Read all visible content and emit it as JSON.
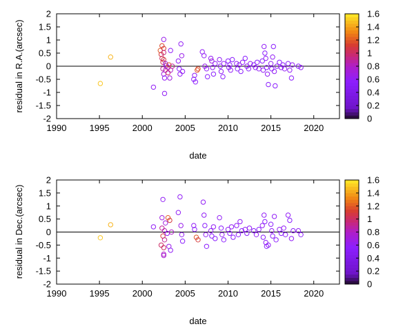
{
  "chart_data": [
    {
      "type": "scatter",
      "xlabel": "date",
      "ylabel": "residual in R.A.(arcsec)",
      "xlim": [
        1990,
        2023
      ],
      "ylim": [
        -2,
        2
      ],
      "xticks": [
        1990,
        1995,
        2000,
        2005,
        2010,
        2015,
        2020
      ],
      "yticks": [
        -2,
        -1.5,
        -1,
        -0.5,
        0,
        0.5,
        1,
        1.5,
        2
      ],
      "grid": false,
      "zero_line": true,
      "marker": "open-circle",
      "colorbar": {
        "range": [
          0,
          1.6
        ],
        "ticks": [
          0,
          0.2,
          0.4,
          0.6,
          0.8,
          1,
          1.2,
          1.4,
          1.6
        ],
        "placement": "right"
      },
      "points": [
        {
          "x": 1995.1,
          "y": -0.66,
          "c": 1.5
        },
        {
          "x": 1996.3,
          "y": 0.35,
          "c": 1.45
        },
        {
          "x": 2001.3,
          "y": -0.8,
          "c": 0.6
        },
        {
          "x": 2002.1,
          "y": 0.6,
          "c": 1.2
        },
        {
          "x": 2002.2,
          "y": 0.45,
          "c": 1.1
        },
        {
          "x": 2002.3,
          "y": 0.78,
          "c": 1.15
        },
        {
          "x": 2002.3,
          "y": 0.3,
          "c": 1.0
        },
        {
          "x": 2002.4,
          "y": 0.15,
          "c": 1.05
        },
        {
          "x": 2002.4,
          "y": -0.1,
          "c": 0.9
        },
        {
          "x": 2002.5,
          "y": 1.02,
          "c": 0.65
        },
        {
          "x": 2002.5,
          "y": 0.68,
          "c": 1.1
        },
        {
          "x": 2002.5,
          "y": 0.52,
          "c": 0.95
        },
        {
          "x": 2002.5,
          "y": 0.25,
          "c": 1.1
        },
        {
          "x": 2002.5,
          "y": -0.3,
          "c": 0.7
        },
        {
          "x": 2002.6,
          "y": -0.45,
          "c": 0.6
        },
        {
          "x": 2002.6,
          "y": -1.04,
          "c": 0.6
        },
        {
          "x": 2002.7,
          "y": 0.1,
          "c": 0.7
        },
        {
          "x": 2002.7,
          "y": -0.15,
          "c": 0.8
        },
        {
          "x": 2002.8,
          "y": 0.02,
          "c": 0.65
        },
        {
          "x": 2003.0,
          "y": -0.05,
          "c": 0.9
        },
        {
          "x": 2003.0,
          "y": -0.25,
          "c": 1.0
        },
        {
          "x": 2003.1,
          "y": 0.05,
          "c": 1.2
        },
        {
          "x": 2003.2,
          "y": -0.45,
          "c": 0.7
        },
        {
          "x": 2003.3,
          "y": 0.6,
          "c": 0.6
        },
        {
          "x": 2003.3,
          "y": -0.15,
          "c": 0.8
        },
        {
          "x": 2003.5,
          "y": 0.0,
          "c": 0.9
        },
        {
          "x": 2004.2,
          "y": 0.2,
          "c": 0.6
        },
        {
          "x": 2004.3,
          "y": -0.1,
          "c": 0.55
        },
        {
          "x": 2004.4,
          "y": -0.3,
          "c": 0.6
        },
        {
          "x": 2004.5,
          "y": 0.85,
          "c": 0.6
        },
        {
          "x": 2004.6,
          "y": 0.4,
          "c": 0.65
        },
        {
          "x": 2004.7,
          "y": -0.2,
          "c": 0.6
        },
        {
          "x": 2006.0,
          "y": -0.5,
          "c": 0.55
        },
        {
          "x": 2006.1,
          "y": -0.35,
          "c": 0.6
        },
        {
          "x": 2006.2,
          "y": -0.6,
          "c": 0.55
        },
        {
          "x": 2006.4,
          "y": -0.15,
          "c": 1.2
        },
        {
          "x": 2006.5,
          "y": -0.1,
          "c": 1.15
        },
        {
          "x": 2007.0,
          "y": 0.55,
          "c": 0.6
        },
        {
          "x": 2007.2,
          "y": 0.4,
          "c": 0.6
        },
        {
          "x": 2007.3,
          "y": 0.0,
          "c": 0.65
        },
        {
          "x": 2007.5,
          "y": -0.1,
          "c": 0.6
        },
        {
          "x": 2007.6,
          "y": -0.4,
          "c": 0.55
        },
        {
          "x": 2008.0,
          "y": 0.3,
          "c": 0.6
        },
        {
          "x": 2008.1,
          "y": 0.2,
          "c": 0.7
        },
        {
          "x": 2008.2,
          "y": -0.05,
          "c": 0.6
        },
        {
          "x": 2008.3,
          "y": -0.3,
          "c": 0.55
        },
        {
          "x": 2008.5,
          "y": 0.1,
          "c": 0.6
        },
        {
          "x": 2009.0,
          "y": 0.25,
          "c": 0.6
        },
        {
          "x": 2009.1,
          "y": 0.0,
          "c": 0.55
        },
        {
          "x": 2009.2,
          "y": -0.2,
          "c": 0.6
        },
        {
          "x": 2009.4,
          "y": -0.4,
          "c": 0.55
        },
        {
          "x": 2009.5,
          "y": 0.1,
          "c": 0.6
        },
        {
          "x": 2010.0,
          "y": 0.2,
          "c": 0.55
        },
        {
          "x": 2010.1,
          "y": -0.05,
          "c": 0.6
        },
        {
          "x": 2010.2,
          "y": 0.05,
          "c": 0.55
        },
        {
          "x": 2010.3,
          "y": -0.15,
          "c": 0.6
        },
        {
          "x": 2010.5,
          "y": 0.25,
          "c": 0.55
        },
        {
          "x": 2011.0,
          "y": 0.1,
          "c": 0.6
        },
        {
          "x": 2011.1,
          "y": -0.1,
          "c": 0.55
        },
        {
          "x": 2011.3,
          "y": 0.05,
          "c": 0.6
        },
        {
          "x": 2011.5,
          "y": -0.2,
          "c": 0.55
        },
        {
          "x": 2011.7,
          "y": 0.15,
          "c": 0.6
        },
        {
          "x": 2012.0,
          "y": 0.3,
          "c": 0.55
        },
        {
          "x": 2012.2,
          "y": 0.0,
          "c": 0.6
        },
        {
          "x": 2012.4,
          "y": -0.1,
          "c": 0.55
        },
        {
          "x": 2012.6,
          "y": 0.1,
          "c": 0.6
        },
        {
          "x": 2013.0,
          "y": 0.05,
          "c": 0.55
        },
        {
          "x": 2013.2,
          "y": -0.05,
          "c": 0.6
        },
        {
          "x": 2013.4,
          "y": 0.15,
          "c": 0.55
        },
        {
          "x": 2013.6,
          "y": -0.1,
          "c": 0.6
        },
        {
          "x": 2014.0,
          "y": 0.2,
          "c": 0.55
        },
        {
          "x": 2014.1,
          "y": -0.15,
          "c": 0.6
        },
        {
          "x": 2014.2,
          "y": 0.75,
          "c": 0.6
        },
        {
          "x": 2014.3,
          "y": 0.5,
          "c": 0.55
        },
        {
          "x": 2014.4,
          "y": 0.3,
          "c": 0.6
        },
        {
          "x": 2014.5,
          "y": -0.05,
          "c": 0.55
        },
        {
          "x": 2014.6,
          "y": -0.3,
          "c": 0.6
        },
        {
          "x": 2014.7,
          "y": -0.7,
          "c": 0.55
        },
        {
          "x": 2015.0,
          "y": 0.1,
          "c": 0.6
        },
        {
          "x": 2015.1,
          "y": -0.1,
          "c": 0.55
        },
        {
          "x": 2015.2,
          "y": 0.35,
          "c": 0.6
        },
        {
          "x": 2015.3,
          "y": 0.75,
          "c": 0.55
        },
        {
          "x": 2015.4,
          "y": -0.2,
          "c": 0.6
        },
        {
          "x": 2015.5,
          "y": -0.75,
          "c": 0.55
        },
        {
          "x": 2015.7,
          "y": 0.0,
          "c": 0.6
        },
        {
          "x": 2016.0,
          "y": 0.15,
          "c": 0.55
        },
        {
          "x": 2016.2,
          "y": -0.05,
          "c": 0.6
        },
        {
          "x": 2016.4,
          "y": 0.05,
          "c": 0.55
        },
        {
          "x": 2016.6,
          "y": -0.1,
          "c": 0.6
        },
        {
          "x": 2017.0,
          "y": 0.1,
          "c": 0.55
        },
        {
          "x": 2017.2,
          "y": -0.15,
          "c": 0.6
        },
        {
          "x": 2017.4,
          "y": -0.45,
          "c": 0.55
        },
        {
          "x": 2017.5,
          "y": 0.05,
          "c": 0.6
        },
        {
          "x": 2018.2,
          "y": 0.0,
          "c": 0.55
        },
        {
          "x": 2018.5,
          "y": -0.05,
          "c": 0.6
        }
      ]
    },
    {
      "type": "scatter",
      "xlabel": "date",
      "ylabel": "residual in Dec.(arcsec)",
      "xlim": [
        1990,
        2023
      ],
      "ylim": [
        -2,
        2
      ],
      "xticks": [
        1990,
        1995,
        2000,
        2005,
        2010,
        2015,
        2020
      ],
      "yticks": [
        -2,
        -1.5,
        -1,
        -0.5,
        0,
        0.5,
        1,
        1.5,
        2
      ],
      "grid": false,
      "zero_line": true,
      "marker": "open-circle",
      "colorbar": {
        "range": [
          0,
          1.6
        ],
        "ticks": [
          0,
          0.2,
          0.4,
          0.6,
          0.8,
          1,
          1.2,
          1.4,
          1.6
        ],
        "placement": "right"
      },
      "points": [
        {
          "x": 1995.1,
          "y": -0.22,
          "c": 1.5
        },
        {
          "x": 1996.3,
          "y": 0.28,
          "c": 1.45
        },
        {
          "x": 2001.3,
          "y": 0.2,
          "c": 0.6
        },
        {
          "x": 2002.2,
          "y": -0.5,
          "c": 1.0
        },
        {
          "x": 2002.3,
          "y": 0.55,
          "c": 0.7
        },
        {
          "x": 2002.3,
          "y": 0.15,
          "c": 0.9
        },
        {
          "x": 2002.4,
          "y": 1.25,
          "c": 0.6
        },
        {
          "x": 2002.4,
          "y": -0.15,
          "c": 1.1
        },
        {
          "x": 2002.5,
          "y": -0.85,
          "c": 0.8
        },
        {
          "x": 2002.5,
          "y": -0.9,
          "c": 0.75
        },
        {
          "x": 2002.5,
          "y": -0.6,
          "c": 1.0
        },
        {
          "x": 2002.6,
          "y": 0.05,
          "c": 0.85
        },
        {
          "x": 2002.6,
          "y": -0.3,
          "c": 0.9
        },
        {
          "x": 2002.7,
          "y": 0.35,
          "c": 0.7
        },
        {
          "x": 2002.9,
          "y": -0.05,
          "c": 0.6
        },
        {
          "x": 2003.0,
          "y": 0.55,
          "c": 1.2
        },
        {
          "x": 2003.1,
          "y": -0.55,
          "c": 0.65
        },
        {
          "x": 2003.2,
          "y": 0.45,
          "c": 1.1
        },
        {
          "x": 2003.3,
          "y": -0.7,
          "c": 0.6
        },
        {
          "x": 2003.4,
          "y": 0.0,
          "c": 0.8
        },
        {
          "x": 2004.2,
          "y": 0.75,
          "c": 0.6
        },
        {
          "x": 2004.4,
          "y": 1.35,
          "c": 0.6
        },
        {
          "x": 2004.5,
          "y": 0.25,
          "c": 0.65
        },
        {
          "x": 2004.6,
          "y": -0.1,
          "c": 0.6
        },
        {
          "x": 2004.7,
          "y": -0.35,
          "c": 0.55
        },
        {
          "x": 2006.0,
          "y": 0.25,
          "c": 0.6
        },
        {
          "x": 2006.1,
          "y": 0.1,
          "c": 0.55
        },
        {
          "x": 2006.3,
          "y": -0.2,
          "c": 1.2
        },
        {
          "x": 2006.5,
          "y": -0.3,
          "c": 1.1
        },
        {
          "x": 2007.1,
          "y": 1.15,
          "c": 0.6
        },
        {
          "x": 2007.2,
          "y": 0.65,
          "c": 0.6
        },
        {
          "x": 2007.3,
          "y": 0.25,
          "c": 0.55
        },
        {
          "x": 2007.4,
          "y": -0.1,
          "c": 0.6
        },
        {
          "x": 2007.5,
          "y": -0.55,
          "c": 0.55
        },
        {
          "x": 2008.0,
          "y": 0.05,
          "c": 0.6
        },
        {
          "x": 2008.1,
          "y": -0.15,
          "c": 0.55
        },
        {
          "x": 2008.3,
          "y": 0.2,
          "c": 0.6
        },
        {
          "x": 2008.5,
          "y": -0.25,
          "c": 0.55
        },
        {
          "x": 2009.0,
          "y": 0.55,
          "c": 0.6
        },
        {
          "x": 2009.2,
          "y": 0.15,
          "c": 0.55
        },
        {
          "x": 2009.3,
          "y": -0.1,
          "c": 0.6
        },
        {
          "x": 2009.5,
          "y": -0.3,
          "c": 0.55
        },
        {
          "x": 2010.0,
          "y": 0.1,
          "c": 0.6
        },
        {
          "x": 2010.2,
          "y": -0.05,
          "c": 0.55
        },
        {
          "x": 2010.4,
          "y": 0.2,
          "c": 0.6
        },
        {
          "x": 2010.6,
          "y": -0.2,
          "c": 0.55
        },
        {
          "x": 2011.0,
          "y": 0.25,
          "c": 0.6
        },
        {
          "x": 2011.2,
          "y": -0.1,
          "c": 0.55
        },
        {
          "x": 2011.4,
          "y": 0.4,
          "c": 0.6
        },
        {
          "x": 2011.6,
          "y": 0.05,
          "c": 0.55
        },
        {
          "x": 2012.0,
          "y": 0.1,
          "c": 0.6
        },
        {
          "x": 2012.2,
          "y": -0.05,
          "c": 0.55
        },
        {
          "x": 2012.5,
          "y": 0.15,
          "c": 0.6
        },
        {
          "x": 2013.0,
          "y": 0.05,
          "c": 0.55
        },
        {
          "x": 2013.3,
          "y": -0.1,
          "c": 0.6
        },
        {
          "x": 2013.6,
          "y": 0.1,
          "c": 0.55
        },
        {
          "x": 2014.0,
          "y": 0.25,
          "c": 0.6
        },
        {
          "x": 2014.1,
          "y": -0.2,
          "c": 0.55
        },
        {
          "x": 2014.2,
          "y": 0.65,
          "c": 0.6
        },
        {
          "x": 2014.3,
          "y": 0.4,
          "c": 0.55
        },
        {
          "x": 2014.4,
          "y": -0.4,
          "c": 0.6
        },
        {
          "x": 2014.5,
          "y": -0.55,
          "c": 0.55
        },
        {
          "x": 2014.7,
          "y": -0.5,
          "c": 0.6
        },
        {
          "x": 2015.0,
          "y": 0.3,
          "c": 0.55
        },
        {
          "x": 2015.1,
          "y": 0.05,
          "c": 0.6
        },
        {
          "x": 2015.2,
          "y": -0.15,
          "c": 0.55
        },
        {
          "x": 2015.4,
          "y": 0.6,
          "c": 0.6
        },
        {
          "x": 2015.6,
          "y": -0.3,
          "c": 0.55
        },
        {
          "x": 2016.0,
          "y": 0.1,
          "c": 0.6
        },
        {
          "x": 2016.2,
          "y": -0.05,
          "c": 0.55
        },
        {
          "x": 2016.5,
          "y": 0.15,
          "c": 0.6
        },
        {
          "x": 2016.7,
          "y": -0.1,
          "c": 0.55
        },
        {
          "x": 2017.0,
          "y": 0.65,
          "c": 0.6
        },
        {
          "x": 2017.2,
          "y": 0.45,
          "c": 0.55
        },
        {
          "x": 2017.4,
          "y": -0.25,
          "c": 0.6
        },
        {
          "x": 2017.6,
          "y": 0.05,
          "c": 0.55
        },
        {
          "x": 2018.2,
          "y": 0.05,
          "c": 0.6
        },
        {
          "x": 2018.5,
          "y": -0.1,
          "c": 0.55
        }
      ]
    }
  ]
}
